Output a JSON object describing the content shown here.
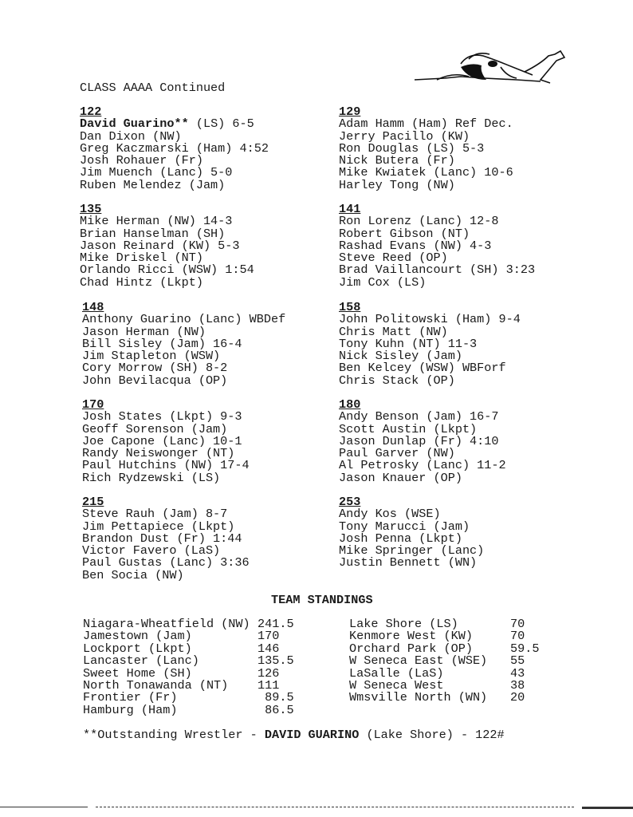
{
  "title": "CLASS AAAA Continued",
  "weight_classes": [
    {
      "weight": "122",
      "entries": [
        "(LS) 6-5",
        "Dan Dixon (NW)",
        "Greg Kaczmarski (Ham) 4:52",
        "Josh Rohauer (Fr)",
        "Jim Muench (Lanc) 5-0",
        "Ruben Melendez (Jam)"
      ],
      "champion_bold": "David Guarino**"
    },
    {
      "weight": "129",
      "entries": [
        "Adam Hamm (Ham) Ref Dec.",
        "Jerry Pacillo (KW)",
        "Ron Douglas (LS) 5-3",
        "Nick Butera (Fr)",
        "Mike Kwiatek (Lanc) 10-6",
        "Harley Tong (NW)"
      ]
    },
    {
      "weight": "135",
      "entries": [
        "Mike Herman (NW) 14-3",
        "Brian Hanselman (SH)",
        "Jason Reinard (KW) 5-3",
        "Mike Driskel (NT)",
        "Orlando Ricci (WSW) 1:54",
        "Chad Hintz (Lkpt)"
      ]
    },
    {
      "weight": "141",
      "entries": [
        "Ron Lorenz (Lanc) 12-8",
        "Robert Gibson (NT)",
        "Rashad Evans (NW) 4-3",
        "Steve Reed (OP)",
        "Brad Vaillancourt (SH) 3:23",
        "Jim Cox (LS)"
      ]
    },
    {
      "weight": "148",
      "entries": [
        "Anthony Guarino (Lanc) WBDef",
        "Jason Herman (NW)",
        "Bill Sisley (Jam) 16-4",
        "Jim Stapleton (WSW)",
        "Cory Morrow (SH) 8-2",
        "John Bevilacqua (OP)"
      ]
    },
    {
      "weight": "158",
      "entries": [
        "John Politowski (Ham) 9-4",
        "Chris Matt (NW)",
        "Tony Kuhn (NT) 11-3",
        "Nick Sisley (Jam)",
        "Ben Kelcey (WSW) WBForf",
        "Chris Stack (OP)"
      ]
    },
    {
      "weight": "170",
      "entries": [
        "Josh States (Lkpt) 9-3",
        "Geoff Sorenson (Jam)",
        "Joe Capone (Lanc) 10-1",
        "Randy Neiswonger (NT)",
        "Paul Hutchins (NW) 17-4",
        "Rich Rydzewski (LS)"
      ]
    },
    {
      "weight": "180",
      "entries": [
        "Andy Benson (Jam) 16-7",
        "Scott Austin (Lkpt)",
        "Jason Dunlap (Fr) 4:10",
        "Paul Garver (NW)",
        "Al Petrosky (Lanc) 11-2",
        "Jason Knauer (OP)"
      ]
    },
    {
      "weight": "215",
      "entries": [
        "Steve Rauh (Jam) 8-7",
        "Jim Pettapiece (Lkpt)",
        "Brandon Dust (Fr) 1:44",
        "Victor Favero (LaS)",
        "Paul Gustas (Lanc) 3:36",
        "Ben Socia (NW)"
      ]
    },
    {
      "weight": "253",
      "entries": [
        "Andy Kos (WSE)",
        "Tony Marucci (Jam)",
        "Josh Penna (Lkpt)",
        "Mike Springer (Lanc)",
        "Justin Bennett (WN)"
      ]
    }
  ],
  "standings": {
    "heading": "TEAM STANDINGS",
    "left": [
      {
        "team": "Niagara-Wheatfield (NW)",
        "score": "241.5"
      },
      {
        "team": "Jamestown (Jam)",
        "score": "170"
      },
      {
        "team": "Lockport (Lkpt)",
        "score": "146"
      },
      {
        "team": "Lancaster (Lanc)",
        "score": "135.5"
      },
      {
        "team": "Sweet Home (SH)",
        "score": "126"
      },
      {
        "team": "North Tonawanda (NT)",
        "score": "111"
      },
      {
        "team": "Frontier (Fr)",
        "score": " 89.5"
      },
      {
        "team": "Hamburg (Ham)",
        "score": " 86.5"
      }
    ],
    "right": [
      {
        "team": "Lake Shore (LS)",
        "score": "70"
      },
      {
        "team": "Kenmore West (KW)",
        "score": "70"
      },
      {
        "team": "Orchard Park (OP)",
        "score": "59.5"
      },
      {
        "team": "W Seneca East (WSE)",
        "score": "55"
      },
      {
        "team": "LaSalle (LaS)",
        "score": "43"
      },
      {
        "team": "W Seneca West",
        "score": "38"
      },
      {
        "team": "Wmsville North (WN)",
        "score": "20"
      }
    ]
  },
  "footnote": {
    "prefix": "**Outstanding Wrestler - ",
    "name": "DAVID GUARINO",
    "suffix": " (Lake Shore) - 122#"
  },
  "decoration_icon": "wrestlers-illustration"
}
